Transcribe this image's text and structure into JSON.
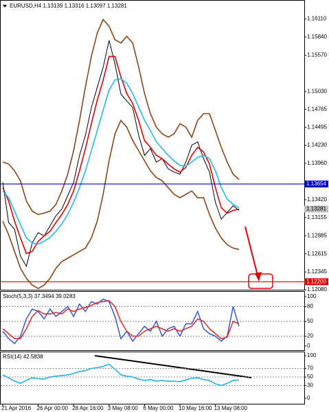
{
  "chart_data": [
    {
      "type": "line",
      "title": "EURUSD,H4 1.13139 1.13316 1.13097 1.13281",
      "categories": [
        "21 Apr 2016",
        null,
        null,
        null,
        null,
        null,
        "26 Apr 00:00",
        null,
        null,
        null,
        null,
        null,
        "28 Apr 16:00",
        null,
        null,
        null,
        null,
        null,
        "3 May 08:00",
        null,
        null,
        null,
        null,
        null,
        "6 May 00:00",
        null,
        null,
        null,
        null,
        null,
        "10 May 16:00",
        null,
        null,
        null,
        null,
        null,
        "13 May 08:00",
        null,
        null,
        null,
        null
      ],
      "series": [
        {
          "color": "#000000",
          "values": [
            1.1368,
            1.1308,
            1.1298,
            1.1258,
            1.1243,
            1.1278,
            1.1293,
            1.1288,
            1.1303,
            1.1318,
            1.1328,
            1.1348,
            1.1368,
            1.1408,
            1.1438,
            1.1479,
            1.1509,
            1.1539,
            1.1579,
            1.1544,
            1.1499,
            1.1489,
            1.1479,
            1.1438,
            1.1408,
            1.1418,
            1.1398,
            1.1403,
            1.1388,
            1.1383,
            1.138,
            1.1398,
            1.1423,
            1.1428,
            1.1403,
            1.1383,
            1.1338,
            1.1313,
            1.1323,
            1.1333,
            1.1326
          ]
        },
        {
          "color": "#e00000",
          "values": [
            1.136,
            1.134,
            1.131,
            1.1285,
            1.1262,
            1.1265,
            1.128,
            1.1288,
            1.1295,
            1.1308,
            1.132,
            1.1335,
            1.1355,
            1.1385,
            1.1418,
            1.1455,
            1.149,
            1.152,
            1.1555,
            1.1555,
            1.1525,
            1.15,
            1.1485,
            1.146,
            1.143,
            1.142,
            1.1408,
            1.1403,
            1.1395,
            1.1388,
            1.1383,
            1.139,
            1.1408,
            1.142,
            1.1413,
            1.1395,
            1.136,
            1.133,
            1.1322,
            1.1326,
            1.1328
          ]
        },
        {
          "color": "#20b8e8",
          "values": [
            1.1355,
            1.1345,
            1.1325,
            1.1305,
            1.1285,
            1.1278,
            1.1276,
            1.128,
            1.1286,
            1.1295,
            1.1306,
            1.132,
            1.1338,
            1.136,
            1.1385,
            1.1415,
            1.1445,
            1.1475,
            1.1505,
            1.152,
            1.1522,
            1.1515,
            1.15,
            1.148,
            1.146,
            1.1445,
            1.1428,
            1.1418,
            1.1408,
            1.14,
            1.1393,
            1.1392,
            1.1398,
            1.1405,
            1.1408,
            1.1403,
            1.1385,
            1.136,
            1.1343,
            1.1335,
            1.133
          ]
        },
        {
          "color": "#8b4513",
          "values": [
            1.1398,
            1.1395,
            1.1385,
            1.137,
            1.134,
            1.1325,
            1.132,
            1.1322,
            1.1325,
            1.1335,
            1.1355,
            1.138,
            1.1415,
            1.146,
            1.151,
            1.1555,
            1.159,
            1.161,
            1.16,
            1.158,
            1.1575,
            1.1585,
            1.1575,
            1.154,
            1.15,
            1.147,
            1.145,
            1.144,
            1.1435,
            1.144,
            1.1455,
            1.145,
            1.1435,
            1.146,
            1.147,
            1.147,
            1.1445,
            1.142,
            1.1398,
            1.138,
            1.1372
          ]
        },
        {
          "color": "#8b4513",
          "values": [
            1.131,
            1.129,
            1.1265,
            1.124,
            1.1225,
            1.1215,
            1.121,
            1.1215,
            1.1225,
            1.124,
            1.125,
            1.1255,
            1.126,
            1.1265,
            1.127,
            1.1285,
            1.131,
            1.135,
            1.14,
            1.144,
            1.146,
            1.145,
            1.143,
            1.1415,
            1.14,
            1.1385,
            1.1375,
            1.137,
            1.136,
            1.135,
            1.1345,
            1.135,
            1.1355,
            1.1345,
            1.1345,
            1.132,
            1.13,
            1.1285,
            1.1275,
            1.127,
            1.1268
          ]
        }
      ],
      "ylim": [
        1.1206,
        1.1637
      ],
      "yticks": [
        {
          "value": 1.1611,
          "label": "1.16110"
        },
        {
          "value": 1.1584,
          "label": "1.15840"
        },
        {
          "value": 1.1557,
          "label": "1.15570"
        },
        {
          "value": 1.1503,
          "label": "1.15030"
        },
        1.14765,
        1.14495,
        {
          "value": 1.1423,
          "label": "1.14230"
        },
        {
          "value": 1.1396,
          "label": "1.13960"
        },
        {
          "value": 1.1342,
          "label": "1.13420"
        },
        1.13155,
        1.12885,
        1.12615,
        1.12345,
        {
          "value": 1.1208,
          "label": "1.12080"
        }
      ],
      "hlines": [
        {
          "value": 1.13654,
          "color": "#0000cc"
        },
        {
          "value": 1.122,
          "label": "1.12200",
          "color": "#e00000"
        }
      ],
      "current_price": {
        "value": 1.13281,
        "color": "#c0c0c0"
      }
    },
    {
      "type": "line",
      "title": "Stoch(5,3,3) 37.3494 39.0283",
      "series": [
        {
          "color": "#4060d0",
          "values": [
            30,
            15,
            5,
            20,
            55,
            75,
            70,
            55,
            75,
            60,
            70,
            80,
            60,
            85,
            70,
            90,
            85,
            95,
            90,
            60,
            15,
            30,
            10,
            25,
            40,
            30,
            50,
            20,
            35,
            40,
            20,
            45,
            45,
            70,
            35,
            25,
            20,
            10,
            20,
            80,
            40
          ]
        },
        {
          "color": "#e03030",
          "values": [
            35,
            25,
            15,
            15,
            35,
            60,
            72,
            65,
            65,
            68,
            65,
            75,
            70,
            75,
            78,
            82,
            88,
            90,
            92,
            80,
            50,
            30,
            20,
            20,
            30,
            35,
            40,
            35,
            30,
            35,
            30,
            35,
            40,
            55,
            50,
            35,
            25,
            15,
            18,
            50,
            45
          ]
        }
      ],
      "ylim": [
        0,
        100
      ],
      "yticks": [
        100,
        80,
        50,
        20,
        0
      ],
      "levels": [
        80,
        50,
        20
      ]
    },
    {
      "type": "line",
      "title": "RSI(14) 42.5838",
      "series": [
        {
          "color": "#20b0e8",
          "values": [
            55,
            48,
            40,
            35,
            42,
            48,
            46,
            45,
            50,
            52,
            53,
            55,
            58,
            63,
            65,
            70,
            72,
            75,
            80,
            68,
            55,
            52,
            50,
            45,
            42,
            44,
            40,
            42,
            40,
            40,
            39,
            43,
            47,
            48,
            44,
            42,
            34,
            30,
            35,
            42,
            43
          ]
        }
      ],
      "ylim": [
        0,
        100
      ],
      "yticks": [
        100,
        70,
        50,
        30,
        0
      ],
      "levels": [
        70,
        50,
        30
      ]
    }
  ]
}
